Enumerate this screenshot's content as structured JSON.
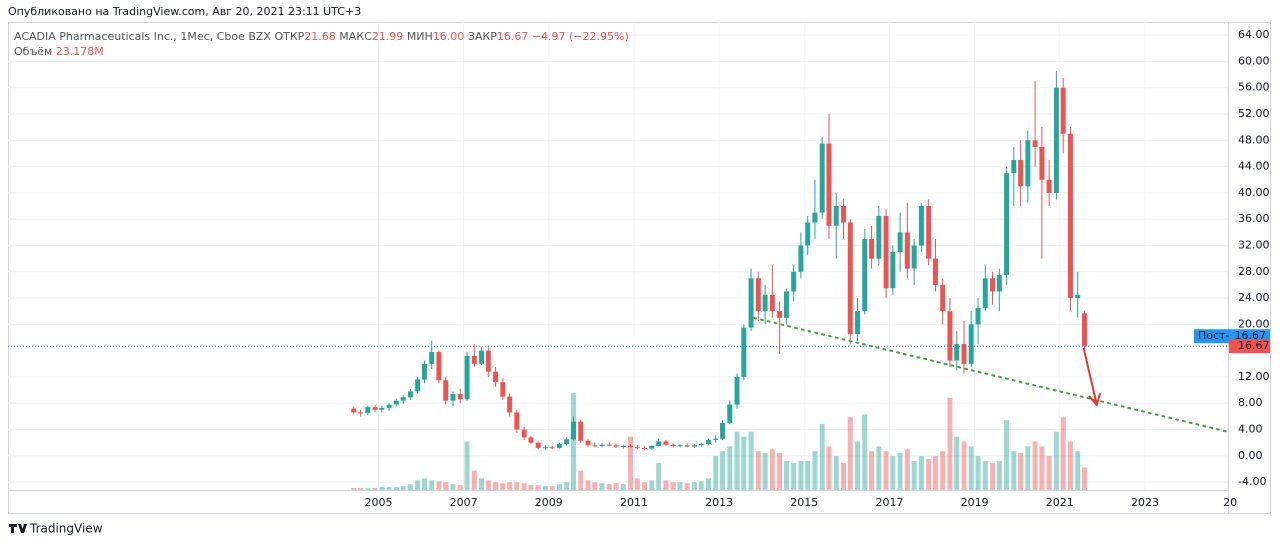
{
  "header": {
    "published": "Опубликовано на TradingView.com, Авг 20, 2021 23:11 UTC+3"
  },
  "footer": {
    "logo": "TradingView"
  },
  "chart_data": {
    "type": "candlestick",
    "legend": {
      "symbol": "ACADIA Pharmaceuticals Inc., 1Мес, Cboe BZX",
      "open_label": "ОТКР",
      "open": "21.68",
      "high_label": "МАКС",
      "high": "21.99",
      "low_label": "МИН",
      "low": "16.00",
      "close_label": "ЗАКР",
      "close": "16.67",
      "change": "−4.97 (−22.95%)",
      "volume_label": "Объём",
      "volume": "23.178M"
    },
    "up_color": "#26a69a",
    "down_color": "#ef5350",
    "xlim": [
      1996.3,
      2024.95
    ],
    "ylim": [
      -5.2,
      66
    ],
    "xticks": [
      2005,
      2007,
      2009,
      2011,
      2013,
      2015,
      2017,
      2019,
      2021,
      2023,
      {
        "value": 2025,
        "label": "20"
      }
    ],
    "yticks": [
      {
        "value": 64,
        "label": "64.00"
      },
      {
        "value": 60,
        "label": "60.00"
      },
      {
        "value": 56,
        "label": "56.00"
      },
      {
        "value": 52,
        "label": "52.00"
      },
      {
        "value": 48,
        "label": "48.00"
      },
      {
        "value": 44,
        "label": "44.00"
      },
      {
        "value": 40,
        "label": "40.00"
      },
      {
        "value": 36,
        "label": "36.00"
      },
      {
        "value": 32,
        "label": "32.00"
      },
      {
        "value": 28,
        "label": "28.00"
      },
      {
        "value": 24,
        "label": "24.00"
      },
      {
        "value": 20,
        "label": "20.00"
      },
      {
        "value": 12,
        "label": "12.00"
      },
      {
        "value": 8,
        "label": "8.00"
      },
      {
        "value": 4,
        "label": "4.00"
      },
      {
        "value": 0,
        "label": "0.00"
      },
      {
        "value": -4,
        "label": "-4.00"
      }
    ],
    "grid": true,
    "last_price": {
      "value": 16.67,
      "tag": "Пост-",
      "label": "16.67",
      "close_label": "16.67"
    },
    "trend_line": {
      "x": [
        2013.82,
        2024.95
      ],
      "y": [
        20.98,
        3.65
      ],
      "color": "#43a047"
    },
    "arrow": {
      "x": [
        2021.56,
        2021.87
      ],
      "y": [
        16.4,
        7.75
      ],
      "color": "#e53935"
    },
    "candles": [
      {
        "x": 2004.42,
        "o": 7.2,
        "h": 7.5,
        "l": 6.4,
        "c": 6.6,
        "v": 2
      },
      {
        "x": 2004.58,
        "o": 6.6,
        "h": 7.0,
        "l": 6.0,
        "c": 6.5,
        "v": 2
      },
      {
        "x": 2004.75,
        "o": 6.5,
        "h": 7.6,
        "l": 6.2,
        "c": 7.4,
        "v": 2
      },
      {
        "x": 2004.92,
        "o": 7.4,
        "h": 7.8,
        "l": 6.6,
        "c": 7.0,
        "v": 2
      },
      {
        "x": 2005.08,
        "o": 7.0,
        "h": 7.6,
        "l": 6.6,
        "c": 7.3,
        "v": 3
      },
      {
        "x": 2005.25,
        "o": 7.3,
        "h": 8.0,
        "l": 6.8,
        "c": 7.8,
        "v": 3
      },
      {
        "x": 2005.42,
        "o": 7.8,
        "h": 8.6,
        "l": 7.5,
        "c": 8.4,
        "v": 3
      },
      {
        "x": 2005.58,
        "o": 8.4,
        "h": 9.2,
        "l": 7.9,
        "c": 8.9,
        "v": 4
      },
      {
        "x": 2005.75,
        "o": 8.9,
        "h": 10.2,
        "l": 8.5,
        "c": 9.8,
        "v": 6
      },
      {
        "x": 2005.92,
        "o": 9.8,
        "h": 12.0,
        "l": 9.5,
        "c": 11.6,
        "v": 10
      },
      {
        "x": 2006.08,
        "o": 11.6,
        "h": 14.5,
        "l": 11.0,
        "c": 14.0,
        "v": 12
      },
      {
        "x": 2006.25,
        "o": 14.0,
        "h": 17.5,
        "l": 13.2,
        "c": 15.8,
        "v": 10
      },
      {
        "x": 2006.42,
        "o": 15.8,
        "h": 16.0,
        "l": 11.0,
        "c": 11.5,
        "v": 9
      },
      {
        "x": 2006.58,
        "o": 11.5,
        "h": 12.0,
        "l": 7.8,
        "c": 8.4,
        "v": 8
      },
      {
        "x": 2006.75,
        "o": 8.4,
        "h": 9.8,
        "l": 7.6,
        "c": 9.4,
        "v": 6
      },
      {
        "x": 2006.92,
        "o": 9.4,
        "h": 10.2,
        "l": 8.0,
        "c": 8.6,
        "v": 5
      },
      {
        "x": 2007.08,
        "o": 8.6,
        "h": 15.8,
        "l": 8.4,
        "c": 15.2,
        "v": 50
      },
      {
        "x": 2007.25,
        "o": 15.2,
        "h": 17.0,
        "l": 13.5,
        "c": 14.0,
        "v": 20
      },
      {
        "x": 2007.42,
        "o": 14.0,
        "h": 16.5,
        "l": 13.8,
        "c": 16.0,
        "v": 12
      },
      {
        "x": 2007.58,
        "o": 16.0,
        "h": 16.8,
        "l": 12.0,
        "c": 12.8,
        "v": 10
      },
      {
        "x": 2007.75,
        "o": 12.8,
        "h": 13.5,
        "l": 10.5,
        "c": 11.2,
        "v": 8
      },
      {
        "x": 2007.92,
        "o": 11.2,
        "h": 11.8,
        "l": 8.5,
        "c": 9.0,
        "v": 7
      },
      {
        "x": 2008.08,
        "o": 9.0,
        "h": 9.5,
        "l": 6.0,
        "c": 6.6,
        "v": 8
      },
      {
        "x": 2008.25,
        "o": 6.6,
        "h": 7.0,
        "l": 3.5,
        "c": 4.0,
        "v": 8
      },
      {
        "x": 2008.42,
        "o": 4.0,
        "h": 4.4,
        "l": 2.4,
        "c": 2.8,
        "v": 7
      },
      {
        "x": 2008.58,
        "o": 2.8,
        "h": 3.0,
        "l": 1.8,
        "c": 2.0,
        "v": 5
      },
      {
        "x": 2008.75,
        "o": 2.0,
        "h": 2.2,
        "l": 1.0,
        "c": 1.2,
        "v": 5
      },
      {
        "x": 2008.92,
        "o": 1.2,
        "h": 1.6,
        "l": 0.9,
        "c": 1.3,
        "v": 4
      },
      {
        "x": 2009.08,
        "o": 1.3,
        "h": 1.5,
        "l": 1.0,
        "c": 1.2,
        "v": 4
      },
      {
        "x": 2009.25,
        "o": 1.2,
        "h": 2.0,
        "l": 1.1,
        "c": 1.8,
        "v": 6
      },
      {
        "x": 2009.42,
        "o": 1.8,
        "h": 2.8,
        "l": 1.6,
        "c": 2.5,
        "v": 8
      },
      {
        "x": 2009.58,
        "o": 2.5,
        "h": 6.0,
        "l": 2.3,
        "c": 5.2,
        "v": 100
      },
      {
        "x": 2009.75,
        "o": 5.2,
        "h": 5.5,
        "l": 2.0,
        "c": 2.3,
        "v": 20
      },
      {
        "x": 2009.92,
        "o": 2.3,
        "h": 2.6,
        "l": 1.4,
        "c": 1.6,
        "v": 10
      },
      {
        "x": 2010.08,
        "o": 1.6,
        "h": 2.0,
        "l": 1.3,
        "c": 1.5,
        "v": 8
      },
      {
        "x": 2010.25,
        "o": 1.5,
        "h": 2.0,
        "l": 1.3,
        "c": 1.7,
        "v": 7
      },
      {
        "x": 2010.42,
        "o": 1.7,
        "h": 2.0,
        "l": 1.4,
        "c": 1.6,
        "v": 6
      },
      {
        "x": 2010.58,
        "o": 1.6,
        "h": 1.9,
        "l": 1.2,
        "c": 1.4,
        "v": 7
      },
      {
        "x": 2010.75,
        "o": 1.4,
        "h": 1.7,
        "l": 1.1,
        "c": 1.5,
        "v": 6
      },
      {
        "x": 2010.92,
        "o": 1.5,
        "h": 1.8,
        "l": 1.2,
        "c": 1.3,
        "v": 55
      },
      {
        "x": 2011.08,
        "o": 1.3,
        "h": 1.6,
        "l": 1.0,
        "c": 1.2,
        "v": 12
      },
      {
        "x": 2011.25,
        "o": 1.2,
        "h": 1.5,
        "l": 0.9,
        "c": 1.1,
        "v": 8
      },
      {
        "x": 2011.42,
        "o": 1.1,
        "h": 1.6,
        "l": 0.9,
        "c": 1.5,
        "v": 10
      },
      {
        "x": 2011.58,
        "o": 1.5,
        "h": 2.6,
        "l": 1.4,
        "c": 2.2,
        "v": 28
      },
      {
        "x": 2011.75,
        "o": 2.2,
        "h": 2.4,
        "l": 1.5,
        "c": 1.7,
        "v": 10
      },
      {
        "x": 2011.92,
        "o": 1.7,
        "h": 1.9,
        "l": 1.3,
        "c": 1.5,
        "v": 8
      },
      {
        "x": 2012.08,
        "o": 1.5,
        "h": 1.8,
        "l": 1.3,
        "c": 1.6,
        "v": 8
      },
      {
        "x": 2012.25,
        "o": 1.6,
        "h": 1.9,
        "l": 1.3,
        "c": 1.4,
        "v": 7
      },
      {
        "x": 2012.42,
        "o": 1.4,
        "h": 1.8,
        "l": 1.2,
        "c": 1.6,
        "v": 8
      },
      {
        "x": 2012.58,
        "o": 1.6,
        "h": 2.0,
        "l": 1.4,
        "c": 1.8,
        "v": 9
      },
      {
        "x": 2012.75,
        "o": 1.8,
        "h": 2.6,
        "l": 1.7,
        "c": 2.4,
        "v": 12
      },
      {
        "x": 2012.92,
        "o": 2.4,
        "h": 3.2,
        "l": 2.0,
        "c": 2.6,
        "v": 35
      },
      {
        "x": 2013.08,
        "o": 2.6,
        "h": 5.5,
        "l": 2.4,
        "c": 5.0,
        "v": 40
      },
      {
        "x": 2013.25,
        "o": 5.0,
        "h": 8.5,
        "l": 4.8,
        "c": 7.8,
        "v": 45
      },
      {
        "x": 2013.42,
        "o": 7.8,
        "h": 12.5,
        "l": 7.2,
        "c": 12.0,
        "v": 60
      },
      {
        "x": 2013.58,
        "o": 12.0,
        "h": 20.0,
        "l": 11.5,
        "c": 19.5,
        "v": 55
      },
      {
        "x": 2013.75,
        "o": 19.5,
        "h": 28.5,
        "l": 19.0,
        "c": 27.0,
        "v": 60
      },
      {
        "x": 2013.92,
        "o": 27.0,
        "h": 28.0,
        "l": 20.5,
        "c": 22.0,
        "v": 40
      },
      {
        "x": 2014.08,
        "o": 22.0,
        "h": 26.0,
        "l": 20.0,
        "c": 24.5,
        "v": 38
      },
      {
        "x": 2014.25,
        "o": 24.5,
        "h": 29.0,
        "l": 21.0,
        "c": 22.0,
        "v": 42
      },
      {
        "x": 2014.42,
        "o": 22.0,
        "h": 23.5,
        "l": 15.5,
        "c": 21.0,
        "v": 38
      },
      {
        "x": 2014.58,
        "o": 21.0,
        "h": 25.5,
        "l": 20.0,
        "c": 25.0,
        "v": 30
      },
      {
        "x": 2014.75,
        "o": 25.0,
        "h": 29.0,
        "l": 23.5,
        "c": 28.0,
        "v": 28
      },
      {
        "x": 2014.92,
        "o": 28.0,
        "h": 34.0,
        "l": 27.0,
        "c": 32.0,
        "v": 30
      },
      {
        "x": 2015.08,
        "o": 32.0,
        "h": 36.5,
        "l": 30.5,
        "c": 35.5,
        "v": 30
      },
      {
        "x": 2015.25,
        "o": 35.5,
        "h": 42.0,
        "l": 33.0,
        "c": 37.0,
        "v": 40
      },
      {
        "x": 2015.42,
        "o": 37.0,
        "h": 48.5,
        "l": 36.0,
        "c": 47.5,
        "v": 68
      },
      {
        "x": 2015.58,
        "o": 47.5,
        "h": 52.0,
        "l": 33.0,
        "c": 35.0,
        "v": 45
      },
      {
        "x": 2015.75,
        "o": 35.0,
        "h": 40.0,
        "l": 30.0,
        "c": 38.0,
        "v": 35
      },
      {
        "x": 2015.92,
        "o": 38.0,
        "h": 39.0,
        "l": 33.0,
        "c": 35.5,
        "v": 28
      },
      {
        "x": 2016.08,
        "o": 35.5,
        "h": 36.0,
        "l": 17.0,
        "c": 18.5,
        "v": 75
      },
      {
        "x": 2016.25,
        "o": 18.5,
        "h": 24.0,
        "l": 17.5,
        "c": 22.0,
        "v": 50
      },
      {
        "x": 2016.42,
        "o": 22.0,
        "h": 34.5,
        "l": 21.5,
        "c": 33.0,
        "v": 78
      },
      {
        "x": 2016.58,
        "o": 33.0,
        "h": 35.0,
        "l": 28.5,
        "c": 30.0,
        "v": 40
      },
      {
        "x": 2016.75,
        "o": 30.0,
        "h": 38.0,
        "l": 29.0,
        "c": 36.5,
        "v": 45
      },
      {
        "x": 2016.92,
        "o": 36.5,
        "h": 37.5,
        "l": 24.0,
        "c": 25.5,
        "v": 40
      },
      {
        "x": 2017.08,
        "o": 25.5,
        "h": 32.0,
        "l": 24.5,
        "c": 31.0,
        "v": 35
      },
      {
        "x": 2017.25,
        "o": 31.0,
        "h": 37.0,
        "l": 28.0,
        "c": 34.0,
        "v": 38
      },
      {
        "x": 2017.42,
        "o": 34.0,
        "h": 38.5,
        "l": 27.0,
        "c": 28.5,
        "v": 42
      },
      {
        "x": 2017.58,
        "o": 28.5,
        "h": 33.0,
        "l": 26.0,
        "c": 32.0,
        "v": 30
      },
      {
        "x": 2017.75,
        "o": 32.0,
        "h": 38.5,
        "l": 31.0,
        "c": 38.0,
        "v": 35
      },
      {
        "x": 2017.92,
        "o": 38.0,
        "h": 39.0,
        "l": 29.0,
        "c": 30.0,
        "v": 32
      },
      {
        "x": 2018.08,
        "o": 30.0,
        "h": 33.0,
        "l": 25.0,
        "c": 26.0,
        "v": 35
      },
      {
        "x": 2018.25,
        "o": 26.0,
        "h": 27.0,
        "l": 20.0,
        "c": 22.0,
        "v": 40
      },
      {
        "x": 2018.42,
        "o": 22.0,
        "h": 24.0,
        "l": 13.5,
        "c": 14.5,
        "v": 95
      },
      {
        "x": 2018.58,
        "o": 14.5,
        "h": 19.0,
        "l": 13.0,
        "c": 17.0,
        "v": 55
      },
      {
        "x": 2018.75,
        "o": 17.0,
        "h": 20.5,
        "l": 12.5,
        "c": 14.0,
        "v": 50
      },
      {
        "x": 2018.92,
        "o": 14.0,
        "h": 22.0,
        "l": 13.5,
        "c": 20.0,
        "v": 45
      },
      {
        "x": 2019.08,
        "o": 20.0,
        "h": 24.0,
        "l": 17.0,
        "c": 22.5,
        "v": 35
      },
      {
        "x": 2019.25,
        "o": 22.5,
        "h": 29.0,
        "l": 22.0,
        "c": 27.0,
        "v": 30
      },
      {
        "x": 2019.42,
        "o": 27.0,
        "h": 28.0,
        "l": 23.0,
        "c": 25.0,
        "v": 28
      },
      {
        "x": 2019.58,
        "o": 25.0,
        "h": 28.5,
        "l": 22.0,
        "c": 27.5,
        "v": 30
      },
      {
        "x": 2019.75,
        "o": 27.5,
        "h": 44.0,
        "l": 26.0,
        "c": 43.0,
        "v": 72
      },
      {
        "x": 2019.92,
        "o": 43.0,
        "h": 47.0,
        "l": 38.0,
        "c": 45.0,
        "v": 40
      },
      {
        "x": 2020.08,
        "o": 45.0,
        "h": 48.0,
        "l": 38.0,
        "c": 41.0,
        "v": 38
      },
      {
        "x": 2020.25,
        "o": 41.0,
        "h": 49.5,
        "l": 38.5,
        "c": 48.0,
        "v": 45
      },
      {
        "x": 2020.42,
        "o": 48.0,
        "h": 57.0,
        "l": 44.0,
        "c": 47.0,
        "v": 50
      },
      {
        "x": 2020.58,
        "o": 47.0,
        "h": 50.0,
        "l": 30.0,
        "c": 42.0,
        "v": 45
      },
      {
        "x": 2020.75,
        "o": 42.0,
        "h": 45.0,
        "l": 38.0,
        "c": 40.0,
        "v": 35
      },
      {
        "x": 2020.92,
        "o": 40.0,
        "h": 58.5,
        "l": 39.0,
        "c": 56.0,
        "v": 60
      },
      {
        "x": 2021.08,
        "o": 56.0,
        "h": 57.5,
        "l": 46.0,
        "c": 49.0,
        "v": 75
      },
      {
        "x": 2021.25,
        "o": 49.0,
        "h": 50.0,
        "l": 22.0,
        "c": 24.0,
        "v": 50
      },
      {
        "x": 2021.42,
        "o": 24.0,
        "h": 28.0,
        "l": 21.0,
        "c": 24.5,
        "v": 40
      },
      {
        "x": 2021.58,
        "o": 21.68,
        "h": 21.99,
        "l": 16.0,
        "c": 16.67,
        "v": 23.178
      }
    ]
  }
}
